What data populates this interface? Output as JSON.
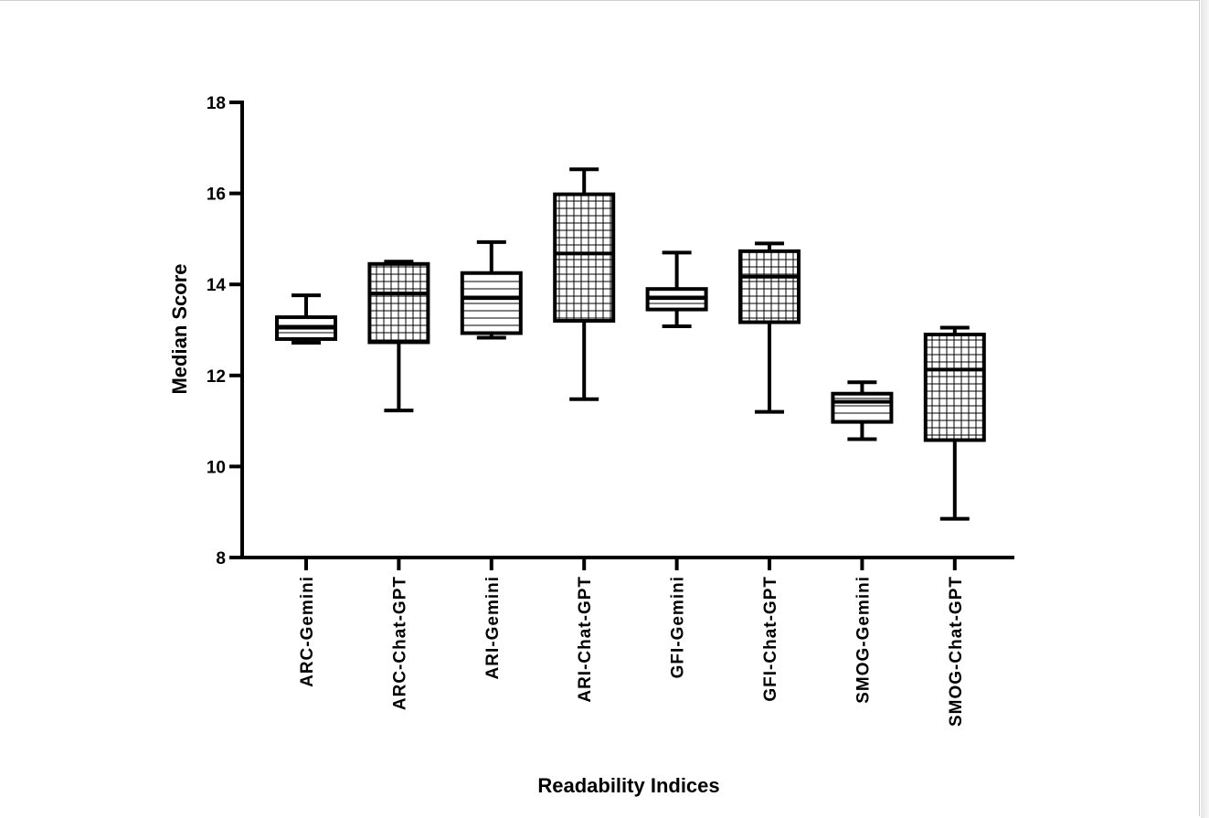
{
  "chart_data": {
    "type": "box",
    "title": "",
    "xlabel": "Readability Indices",
    "ylabel": "Median  Score",
    "ylim": [
      8,
      18
    ],
    "yticks": [
      8,
      10,
      12,
      14,
      16,
      18
    ],
    "ytick_labels": [
      "8",
      "10",
      "12",
      "14",
      "16",
      "18"
    ],
    "grid": false,
    "legend": "none",
    "categories": [
      "ARC-Gemini",
      "ARC-Chat-GPT",
      "ARI-Gemini",
      "ARI-Chat-GPT",
      "GFI-Gemini",
      "GFI-Chat-GPT",
      "SMOG-Gemini",
      "SMOG-Chat-GPT"
    ],
    "boxes": [
      {
        "category": "ARC-Gemini",
        "min": 12.72,
        "q1": 12.8,
        "median": 13.05,
        "q3": 13.28,
        "max": 13.76,
        "pattern": "horizontal"
      },
      {
        "category": "ARC-Chat-GPT",
        "min": 11.23,
        "q1": 12.73,
        "median": 13.8,
        "q3": 14.45,
        "max": 14.5,
        "pattern": "grid"
      },
      {
        "category": "ARI-Gemini",
        "min": 12.83,
        "q1": 12.93,
        "median": 13.7,
        "q3": 14.25,
        "max": 14.93,
        "pattern": "horizontal"
      },
      {
        "category": "ARI-Chat-GPT",
        "min": 11.48,
        "q1": 13.2,
        "median": 14.68,
        "q3": 15.98,
        "max": 16.53,
        "pattern": "grid"
      },
      {
        "category": "GFI-Gemini",
        "min": 13.08,
        "q1": 13.45,
        "median": 13.7,
        "q3": 13.9,
        "max": 14.7,
        "pattern": "horizontal"
      },
      {
        "category": "GFI-Chat-GPT",
        "min": 11.2,
        "q1": 13.17,
        "median": 14.17,
        "q3": 14.73,
        "max": 14.9,
        "pattern": "grid"
      },
      {
        "category": "SMOG-Gemini",
        "min": 10.6,
        "q1": 10.98,
        "median": 11.42,
        "q3": 11.6,
        "max": 11.85,
        "pattern": "horizontal"
      },
      {
        "category": "SMOG-Chat-GPT",
        "min": 8.85,
        "q1": 10.58,
        "median": 12.13,
        "q3": 12.9,
        "max": 13.05,
        "pattern": "grid"
      }
    ],
    "colors": {
      "stroke": "#000000",
      "fill": "#ffffff"
    }
  }
}
